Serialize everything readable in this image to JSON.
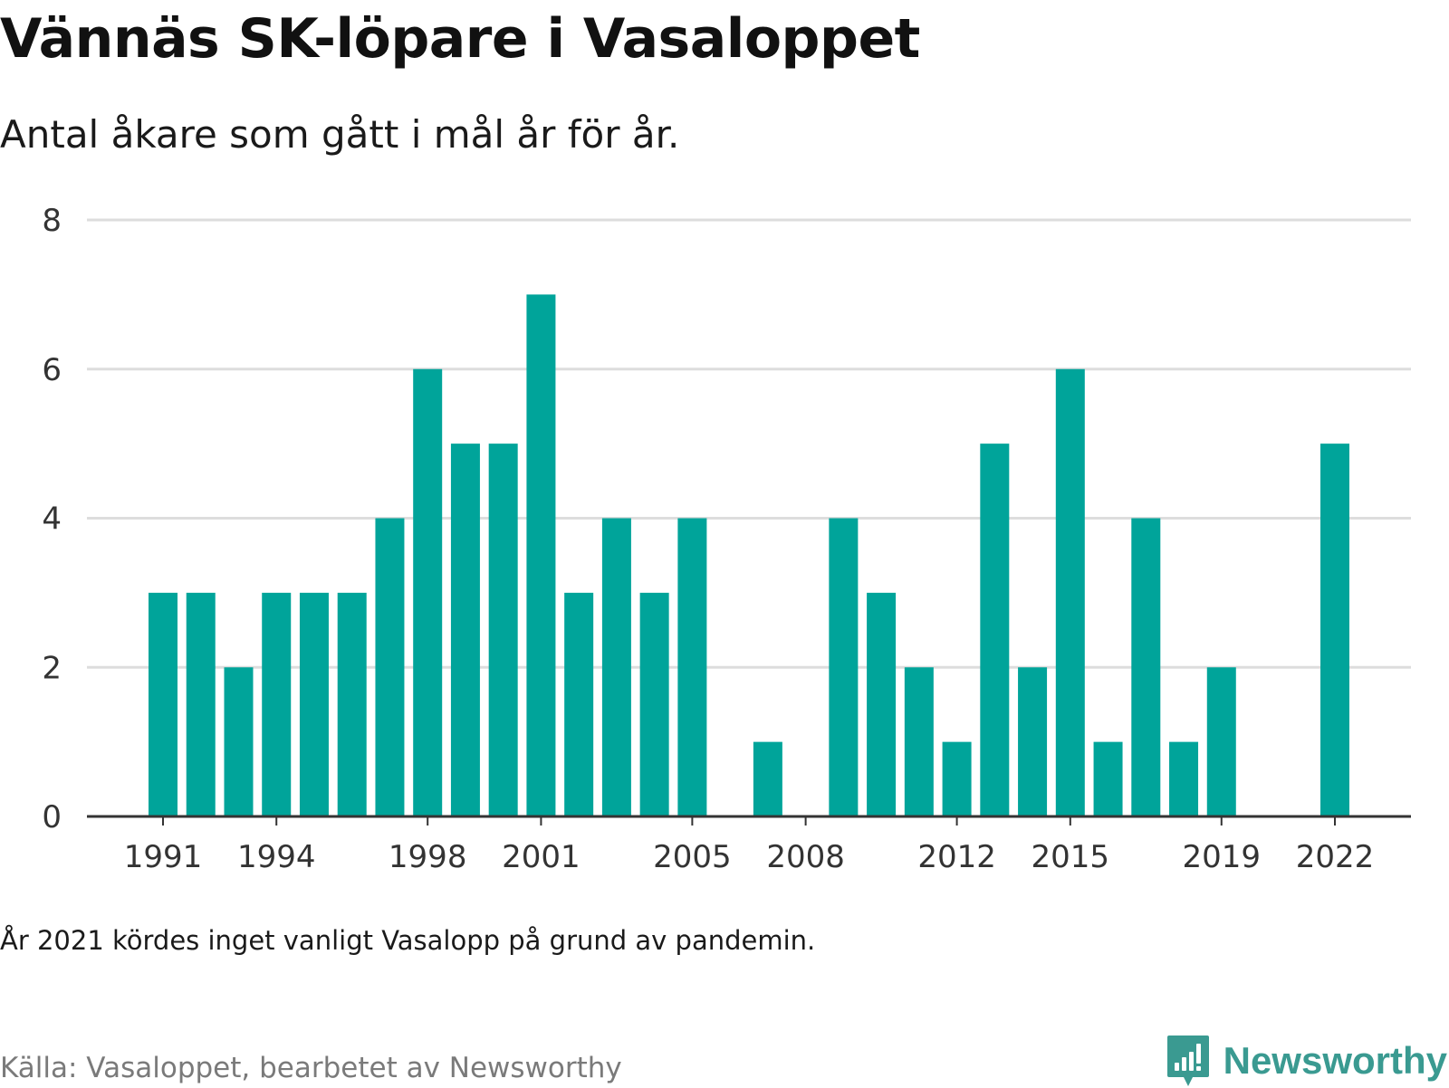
{
  "header": {
    "title": "Vännäs SK-löpare i Vasaloppet",
    "subtitle": "Antal åkare som gått i mål år för år."
  },
  "footer": {
    "note": "År 2021 kördes inget vanligt Vasalopp på grund av pandemin.",
    "source": "Källa: Vasaloppet, bearbetet av Newsworthy",
    "brand": "Newsworthy",
    "brand_icon": "newsworthy-logo-icon"
  },
  "colors": {
    "bar": "#00a49a",
    "grid": "#dddddd",
    "axis": "#333333",
    "brand": "#3a9a91"
  },
  "chart_data": {
    "type": "bar",
    "categories": [
      1991,
      1992,
      1993,
      1994,
      1995,
      1996,
      1997,
      1998,
      1999,
      2000,
      2001,
      2002,
      2003,
      2004,
      2005,
      2006,
      2007,
      2008,
      2009,
      2010,
      2011,
      2012,
      2013,
      2014,
      2015,
      2016,
      2017,
      2018,
      2019,
      2020,
      2021,
      2022
    ],
    "values": [
      3,
      3,
      2,
      3,
      3,
      3,
      4,
      6,
      5,
      5,
      7,
      3,
      4,
      3,
      4,
      0,
      1,
      0,
      4,
      3,
      2,
      1,
      5,
      2,
      6,
      1,
      4,
      1,
      2,
      0,
      0,
      5
    ],
    "x_tick_labels": [
      "1991",
      "1994",
      "1998",
      "2001",
      "2005",
      "2008",
      "2012",
      "2015",
      "2019",
      "2022"
    ],
    "y_ticks": [
      "0",
      "2",
      "4",
      "6",
      "8"
    ],
    "ylim": [
      0,
      8
    ],
    "xlabel": "",
    "ylabel": "",
    "grid": true,
    "legend": "none"
  }
}
